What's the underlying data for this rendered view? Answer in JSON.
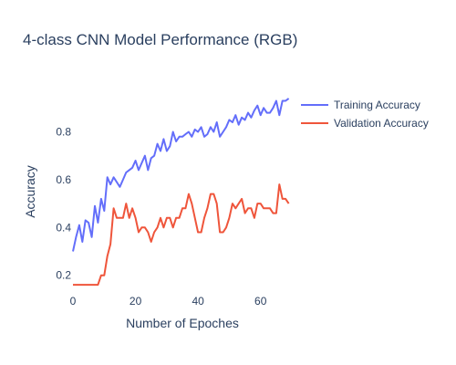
{
  "chart_data": {
    "type": "line",
    "title": "4-class CNN Model Performance (RGB)",
    "xlabel": "Number of Epoches",
    "ylabel": "Accuracy",
    "xlim": [
      0,
      70
    ],
    "ylim": [
      0.13,
      0.97
    ],
    "x_ticks": [
      0,
      20,
      40,
      60
    ],
    "y_ticks": [
      0.2,
      0.4,
      0.6,
      0.8
    ],
    "x_tick_labels": [
      "0",
      "20",
      "40",
      "60"
    ],
    "y_tick_labels": [
      "0.2",
      "0.4",
      "0.6",
      "0.8"
    ],
    "grid": false,
    "legend_position": "top-right",
    "x": [
      0,
      1,
      2,
      3,
      4,
      5,
      6,
      7,
      8,
      9,
      10,
      11,
      12,
      13,
      14,
      15,
      16,
      17,
      18,
      19,
      20,
      21,
      22,
      23,
      24,
      25,
      26,
      27,
      28,
      29,
      30,
      31,
      32,
      33,
      34,
      35,
      36,
      37,
      38,
      39,
      40,
      41,
      42,
      43,
      44,
      45,
      46,
      47,
      48,
      49,
      50,
      51,
      52,
      53,
      54,
      55,
      56,
      57,
      58,
      59,
      60,
      61,
      62,
      63,
      64,
      65,
      66,
      67,
      68,
      69
    ],
    "series": [
      {
        "name": "Training Accuracy",
        "color": "#636efa",
        "values": [
          0.3,
          0.36,
          0.41,
          0.34,
          0.43,
          0.42,
          0.36,
          0.49,
          0.42,
          0.52,
          0.47,
          0.61,
          0.58,
          0.61,
          0.59,
          0.57,
          0.6,
          0.63,
          0.64,
          0.65,
          0.68,
          0.64,
          0.67,
          0.7,
          0.64,
          0.69,
          0.7,
          0.75,
          0.72,
          0.77,
          0.72,
          0.74,
          0.8,
          0.76,
          0.78,
          0.78,
          0.79,
          0.8,
          0.78,
          0.81,
          0.8,
          0.82,
          0.78,
          0.79,
          0.82,
          0.8,
          0.84,
          0.78,
          0.8,
          0.82,
          0.85,
          0.84,
          0.87,
          0.83,
          0.86,
          0.85,
          0.88,
          0.86,
          0.89,
          0.91,
          0.87,
          0.9,
          0.88,
          0.88,
          0.9,
          0.93,
          0.87,
          0.93,
          0.93,
          0.94
        ]
      },
      {
        "name": "Validation Accuracy",
        "color": "#ef553b",
        "values": [
          0.16,
          0.16,
          0.16,
          0.16,
          0.16,
          0.16,
          0.16,
          0.16,
          0.16,
          0.2,
          0.2,
          0.28,
          0.33,
          0.48,
          0.44,
          0.44,
          0.44,
          0.5,
          0.44,
          0.48,
          0.44,
          0.38,
          0.4,
          0.4,
          0.38,
          0.34,
          0.38,
          0.4,
          0.44,
          0.4,
          0.44,
          0.44,
          0.4,
          0.44,
          0.44,
          0.48,
          0.48,
          0.54,
          0.5,
          0.44,
          0.38,
          0.38,
          0.44,
          0.48,
          0.54,
          0.54,
          0.5,
          0.38,
          0.38,
          0.4,
          0.44,
          0.5,
          0.48,
          0.5,
          0.52,
          0.46,
          0.48,
          0.48,
          0.44,
          0.5,
          0.5,
          0.48,
          0.48,
          0.48,
          0.46,
          0.46,
          0.58,
          0.52,
          0.52,
          0.5
        ]
      }
    ]
  }
}
